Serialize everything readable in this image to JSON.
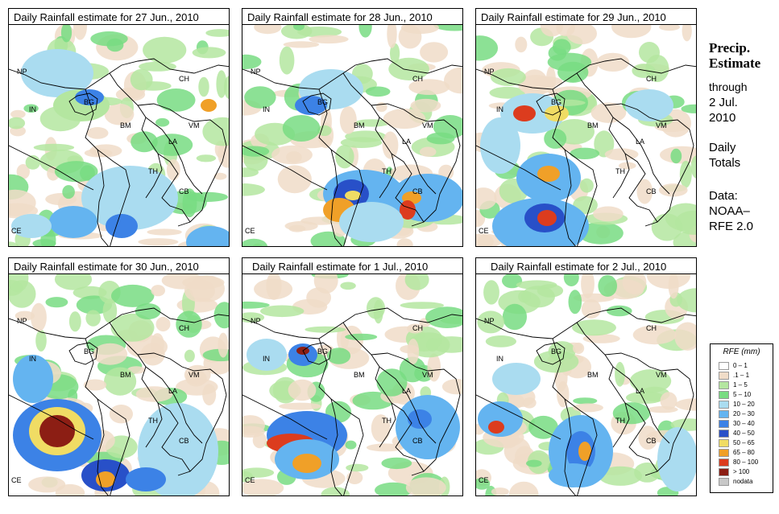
{
  "panels": [
    {
      "title": "Daily Rainfall estimate for  27 Jun., 2010"
    },
    {
      "title": "Daily Rainfall estimate for  28 Jun., 2010"
    },
    {
      "title": "Daily Rainfall estimate for  29 Jun., 2010"
    },
    {
      "title": "Daily Rainfall estimate for  30 Jun., 2010"
    },
    {
      "title": "Daily Rainfall estimate for  1 Jul., 2010"
    },
    {
      "title": "Daily Rainfall estimate for  2 Jul., 2010"
    }
  ],
  "country_labels": {
    "np": "NP",
    "in": "IN",
    "bg": "BG",
    "ch": "CH",
    "bm": "BM",
    "vm": "VM",
    "la": "LA",
    "th": "TH",
    "cb": "CB",
    "ce": "CE"
  },
  "side": {
    "title_line1": "Precip.",
    "title_line2": "Estimate",
    "through": "through",
    "date_line1": "2 Jul.",
    "date_line2": "2010",
    "daily1": "Daily",
    "daily2": "Totals",
    "data1": "Data:",
    "data2": "NOAA–",
    "data3": "RFE 2.0"
  },
  "legend": {
    "title": "RFE (mm)",
    "items": [
      {
        "label": "0 – 1",
        "color": "#ffffff"
      },
      {
        "label": ".1 – 1",
        "color": "#f0dcc8"
      },
      {
        "label": "1 – 5",
        "color": "#b4e6a0"
      },
      {
        "label": "5 – 10",
        "color": "#78dc82"
      },
      {
        "label": "10 – 20",
        "color": "#aadcf0"
      },
      {
        "label": "20 – 30",
        "color": "#64b4f0"
      },
      {
        "label": "30 – 40",
        "color": "#3c82e6"
      },
      {
        "label": "40 – 50",
        "color": "#2850c8"
      },
      {
        "label": "50 – 65",
        "color": "#f0dc64"
      },
      {
        "label": "65 – 80",
        "color": "#f0a028"
      },
      {
        "label": "80 – 100",
        "color": "#dc3c1e"
      },
      {
        "label": "> 100",
        "color": "#8c1e14"
      },
      {
        "label": "nodata",
        "color": "#c8c8c8"
      }
    ]
  }
}
